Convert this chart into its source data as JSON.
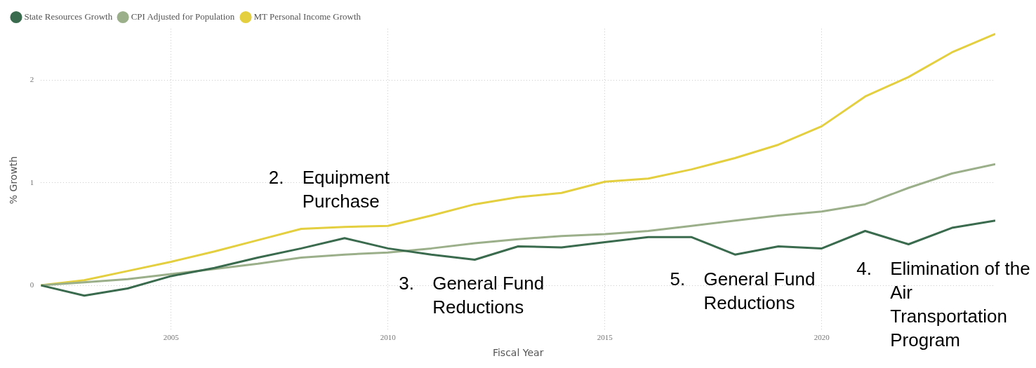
{
  "chart_data": {
    "type": "line",
    "xlabel": "Fiscal Year",
    "ylabel": "% Growth",
    "x": [
      2002,
      2003,
      2004,
      2005,
      2006,
      2007,
      2008,
      2009,
      2010,
      2011,
      2012,
      2013,
      2014,
      2015,
      2016,
      2017,
      2018,
      2019,
      2020,
      2021,
      2022,
      2023,
      2024
    ],
    "series": [
      {
        "name": "State Resources Growth",
        "color": "#3b6b4e",
        "values": [
          0,
          -0.1,
          -0.03,
          0.09,
          0.17,
          0.27,
          0.36,
          0.46,
          0.36,
          0.3,
          0.25,
          0.38,
          0.37,
          0.42,
          0.47,
          0.47,
          0.3,
          0.38,
          0.36,
          0.53,
          0.4,
          0.56,
          0.63
        ]
      },
      {
        "name": "CPI Adjusted for Population",
        "color": "#9bb08a",
        "values": [
          0,
          0.03,
          0.06,
          0.11,
          0.16,
          0.21,
          0.27,
          0.3,
          0.32,
          0.36,
          0.41,
          0.45,
          0.48,
          0.5,
          0.53,
          0.58,
          0.63,
          0.68,
          0.72,
          0.79,
          0.95,
          1.09,
          1.18
        ]
      },
      {
        "name": "MT Personal Income Growth",
        "color": "#e3cf3f",
        "values": [
          0,
          0.05,
          0.14,
          0.23,
          0.33,
          0.44,
          0.55,
          0.57,
          0.58,
          0.68,
          0.79,
          0.86,
          0.9,
          1.01,
          1.04,
          1.13,
          1.24,
          1.37,
          1.55,
          1.84,
          2.03,
          2.27,
          2.45
        ]
      }
    ],
    "xlim": [
      2002,
      2024
    ],
    "xticks": [
      2005,
      2010,
      2015,
      2020
    ],
    "ylim": [
      -0.45,
      2.5
    ],
    "yticks": [
      0,
      1,
      2
    ],
    "grid": true,
    "legend": "top left",
    "marker": "none",
    "line_style": "solid",
    "annotations": [
      "2. Equipment Purchase",
      "3. General Fund Reductions",
      "5. General Fund Reductions",
      "4. Elimination of the Air Transportation Program"
    ]
  }
}
